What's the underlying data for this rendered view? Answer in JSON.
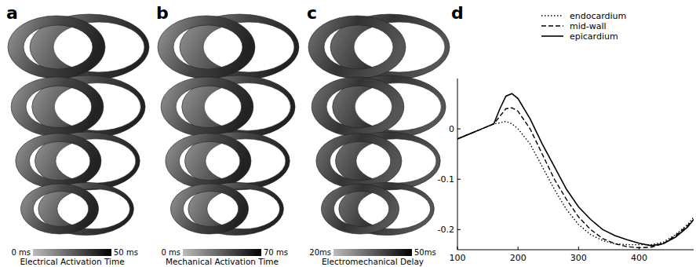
{
  "panels": [
    {
      "label": "a",
      "colorbar": {
        "title": "Electrical Activation Time",
        "range": [
          0,
          50
        ],
        "ticks": [
          {
            "value": 0,
            "label": "0 ms"
          },
          {
            "value": 50,
            "label": "50 ms"
          }
        ]
      }
    },
    {
      "label": "b",
      "colorbar": {
        "title": "Mechanical Activation Time",
        "range": [
          0,
          70
        ],
        "ticks": [
          {
            "value": 0,
            "label": "0 ms"
          },
          {
            "value": 70,
            "label": "70 ms"
          }
        ]
      }
    },
    {
      "label": "c",
      "colorbar": {
        "title": "Electromechanical Delay",
        "range": [
          20,
          50
        ],
        "ticks": [
          {
            "value": 20,
            "label": "20ms"
          },
          {
            "value": 50,
            "label": "50ms"
          }
        ]
      }
    }
  ],
  "chart_data": {
    "type": "line",
    "title": "d",
    "legend": "top",
    "grid": false,
    "x": [
      100,
      120,
      140,
      160,
      170,
      180,
      190,
      200,
      220,
      240,
      260,
      280,
      300,
      320,
      340,
      360,
      380,
      400,
      420,
      440,
      460,
      480,
      490
    ],
    "xlim": [
      100,
      490
    ],
    "xticks": [
      100,
      200,
      300,
      400
    ],
    "ylim": [
      -0.24,
      0.1
    ],
    "yticks": [
      0,
      -0.1,
      -0.2
    ],
    "series": [
      {
        "name": "endocardium",
        "color": "#000000",
        "line_style": "dotted",
        "values": [
          -0.02,
          -0.01,
          0,
          0.01,
          0.012,
          0.015,
          0.01,
          0,
          -0.03,
          -0.075,
          -0.12,
          -0.16,
          -0.19,
          -0.21,
          -0.222,
          -0.228,
          -0.23,
          -0.23,
          -0.23,
          -0.225,
          -0.21,
          -0.19,
          -0.175
        ]
      },
      {
        "name": "mid-wall",
        "color": "#000000",
        "line_style": "dashed",
        "values": [
          -0.02,
          -0.01,
          0,
          0.01,
          0.025,
          0.04,
          0.042,
          0.035,
          0,
          -0.05,
          -0.1,
          -0.14,
          -0.175,
          -0.2,
          -0.218,
          -0.228,
          -0.234,
          -0.236,
          -0.235,
          -0.228,
          -0.212,
          -0.192,
          -0.18
        ]
      },
      {
        "name": "epicardium",
        "color": "#000000",
        "line_style": "solid",
        "values": [
          -0.02,
          -0.01,
          0,
          0.01,
          0.04,
          0.065,
          0.07,
          0.06,
          0.02,
          -0.03,
          -0.075,
          -0.12,
          -0.155,
          -0.18,
          -0.2,
          -0.212,
          -0.22,
          -0.227,
          -0.232,
          -0.228,
          -0.215,
          -0.195,
          -0.18
        ]
      }
    ]
  }
}
